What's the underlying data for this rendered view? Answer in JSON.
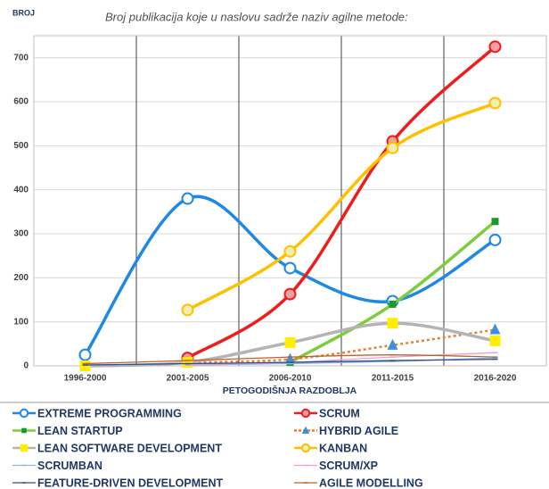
{
  "chart_data": {
    "type": "line",
    "corner_label": "BROJ",
    "title": "Broj publikacija koje u naslovu sadrže naziv agilne metode:",
    "x_label": "PETOGODIŠNJA RAZDOBLJA",
    "categories": [
      "1996-2000",
      "2001-2005",
      "2006-2010",
      "2011-2015",
      "2016-2020"
    ],
    "ylim": [
      0,
      750
    ],
    "yticks": [
      0,
      100,
      200,
      300,
      400,
      500,
      600,
      700
    ],
    "grid": true,
    "smooth": true,
    "series": [
      {
        "name": "EXTREME PROGRAMMING",
        "color": "#1e88e5",
        "marker": "circle",
        "marker_fill": "#ffffff",
        "values": [
          25,
          380,
          222,
          147,
          286
        ]
      },
      {
        "name": "SCRUM",
        "color": "#ee1c1c",
        "marker": "circle",
        "marker_fill": "#f4a0a0",
        "values": [
          null,
          18,
          163,
          510,
          725
        ]
      },
      {
        "name": "LEAN STARTUP",
        "color": "#7ccd3c",
        "marker": "square",
        "marker_fill": "#1a9a2a",
        "values": [
          null,
          null,
          8,
          140,
          328
        ]
      },
      {
        "name": "HYBRID AGILE",
        "color": "#ed7d31",
        "dash": true,
        "marker": "triangle",
        "marker_fill": "#3d8fe0",
        "values": [
          null,
          8,
          15,
          47,
          82
        ]
      },
      {
        "name": "LEAN SOFTWARE DEVELOPMENT",
        "color": "#b4b4b4",
        "marker": "bigsquare",
        "marker_fill": "#ffee00",
        "values": [
          0,
          8,
          53,
          97,
          57
        ]
      },
      {
        "name": "KANBAN",
        "color": "#ffc000",
        "marker": "circle",
        "marker_fill": "#f3eeb0",
        "values": [
          null,
          127,
          260,
          495,
          597
        ]
      },
      {
        "name": "SCRUMBAN",
        "color": "#8fb4e0",
        "marker": "dash",
        "marker_fill": "#8fb4e0",
        "values": [
          null,
          2,
          5,
          10,
          18
        ]
      },
      {
        "name": "SCRUM/XP",
        "color": "#e8a0d0",
        "marker": "dash",
        "marker_fill": "#e8a0d0",
        "values": [
          null,
          3,
          8,
          20,
          30
        ]
      },
      {
        "name": "FEATURE-DRIVEN DEVELOPMENT",
        "color": "#2f4f8f",
        "marker": "dash",
        "marker_fill": "#2f4f8f",
        "values": [
          2,
          5,
          8,
          12,
          15
        ]
      },
      {
        "name": "AGILE MODELLING",
        "color": "#c0622a",
        "marker": "dash",
        "marker_fill": "#c0622a",
        "values": [
          5,
          12,
          20,
          25,
          20
        ]
      }
    ]
  }
}
